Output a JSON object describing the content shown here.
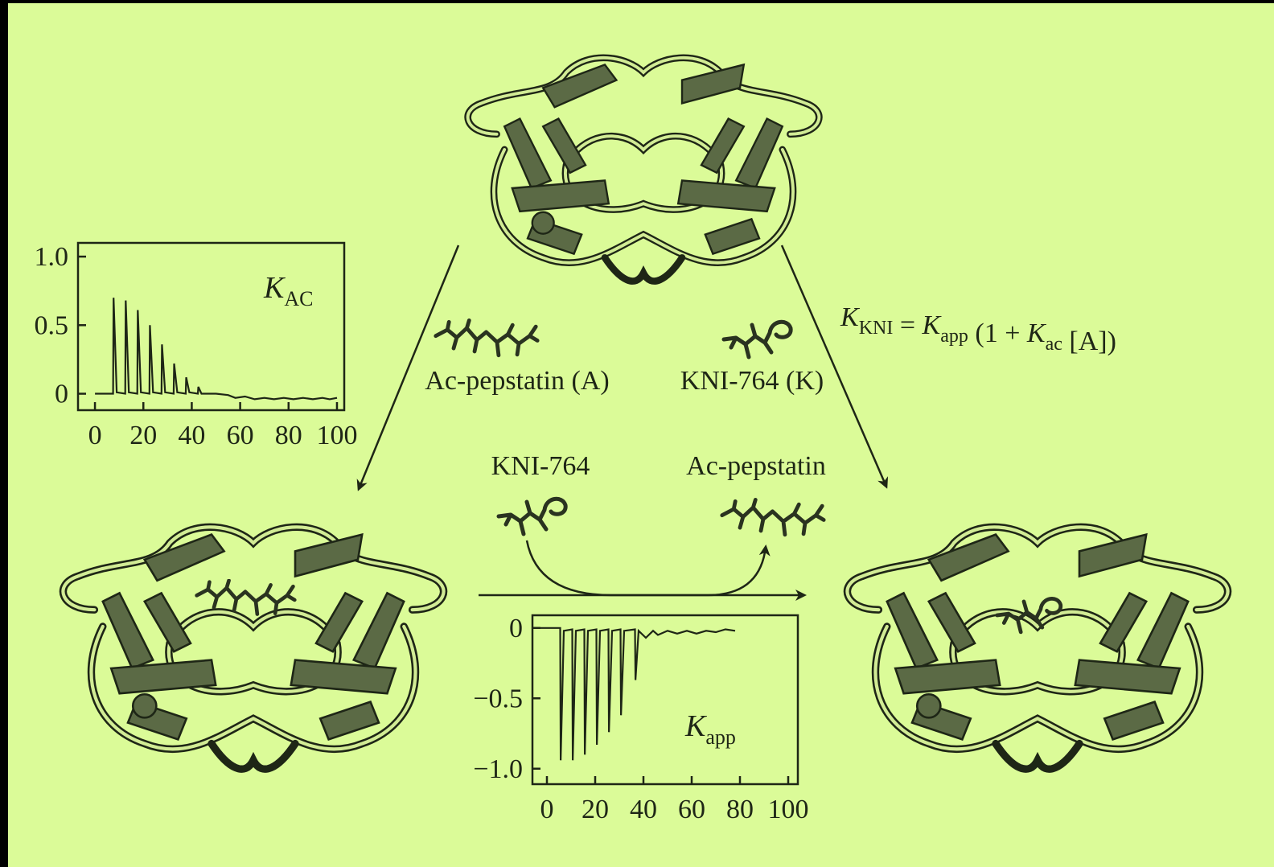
{
  "chart_data": [
    {
      "type": "line",
      "title": "K",
      "title_sub": "AC",
      "x": [
        0,
        7.5,
        7.7,
        9,
        12.5,
        12.7,
        14,
        17.5,
        17.7,
        19,
        22.5,
        22.7,
        24,
        27.5,
        27.7,
        29,
        32.5,
        32.7,
        34,
        37.5,
        37.7,
        39,
        42.5,
        42.7,
        44,
        50,
        55,
        58,
        62,
        66,
        70,
        74,
        78,
        82,
        86,
        90,
        94,
        97,
        100
      ],
      "values": [
        0,
        0,
        0.7,
        0.01,
        0,
        0.68,
        0.01,
        0,
        0.61,
        0.01,
        0,
        0.5,
        0.01,
        0,
        0.36,
        0.01,
        0,
        0.22,
        0.01,
        0,
        0.12,
        0.01,
        0,
        0.05,
        0,
        0,
        -0.01,
        -0.03,
        -0.02,
        -0.04,
        -0.03,
        -0.04,
        -0.03,
        -0.04,
        -0.03,
        -0.04,
        -0.03,
        -0.04,
        -0.03
      ],
      "color": "#1e2616",
      "xlim": [
        -7,
        103
      ],
      "ylim": [
        -0.12,
        1.1
      ],
      "xticks": [
        0,
        20,
        40,
        60,
        80,
        100
      ],
      "yticks": [
        {
          "value": 1,
          "label": "1.0"
        },
        0.5,
        0
      ]
    },
    {
      "type": "line",
      "title": "K",
      "title_sub": "app",
      "x": [
        -3,
        5.5,
        5.7,
        7,
        10.5,
        10.7,
        12,
        15.5,
        15.7,
        17,
        20.5,
        20.7,
        22,
        25.5,
        25.7,
        27,
        30.5,
        30.7,
        32,
        36.5,
        36.7,
        38,
        41,
        44,
        46,
        50,
        54,
        58,
        62,
        66,
        70,
        74,
        78
      ],
      "values": [
        0,
        0,
        -0.94,
        -0.02,
        -0.01,
        -0.94,
        -0.02,
        -0.01,
        -0.9,
        -0.02,
        -0.01,
        -0.83,
        -0.02,
        -0.01,
        -0.74,
        -0.02,
        -0.01,
        -0.62,
        -0.02,
        -0.01,
        -0.37,
        -0.02,
        -0.07,
        -0.02,
        -0.05,
        -0.02,
        -0.04,
        -0.02,
        -0.04,
        -0.02,
        -0.03,
        -0.01,
        -0.02
      ],
      "color": "#1e2616",
      "xlim": [
        -6,
        104
      ],
      "ylim": [
        -1.11,
        0.09
      ],
      "xticks": [
        0,
        20,
        40,
        60,
        80,
        100
      ],
      "yticks": [
        0,
        {
          "value": -0.5,
          "label": "−0.5"
        },
        {
          "value": -1,
          "label": "−1.0"
        }
      ]
    }
  ],
  "diagram": {
    "ligand_labels": [
      "Ac-pepstatin (A)",
      "KNI-764 (K)",
      "KNI-764",
      "Ac-pepstatin"
    ],
    "equation": [
      {
        "text": "K",
        "sub": "KNI"
      },
      {
        "text": " = "
      },
      {
        "text": "K",
        "sub": "app"
      },
      {
        "text": " (1 + "
      },
      {
        "text": "K",
        "sub": "ac"
      },
      {
        "text": " [A])"
      }
    ]
  }
}
